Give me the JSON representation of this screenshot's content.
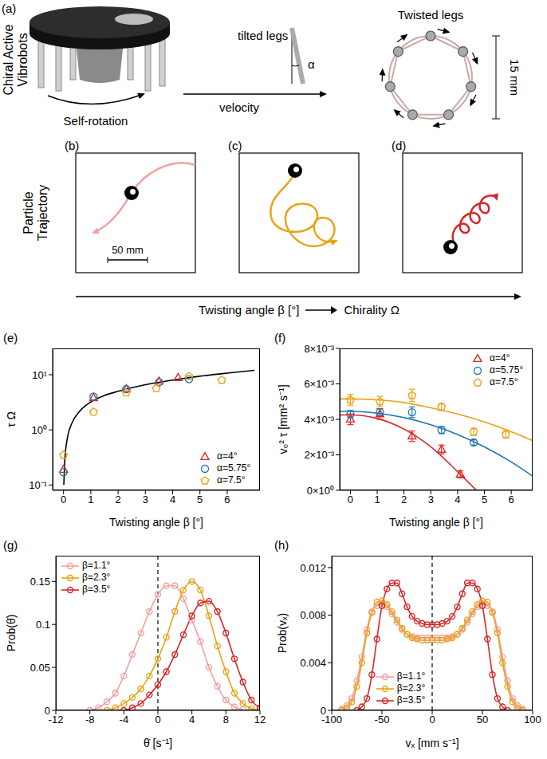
{
  "diagram": {
    "panel_a": {
      "label": "(a)",
      "title": "Chiral Active Vibrobots",
      "rotation_label": "Self-rotation",
      "leg_label": "tilted legs",
      "angle_label": "α",
      "velocity_label": "velocity",
      "top_view_label": "Twisted legs",
      "scale_label": "15 mm"
    },
    "trajectories": {
      "row_label": "Particle Trajectory",
      "scale_label": "50 mm",
      "panels": [
        {
          "label": "(b)",
          "color": "#f2a0a0"
        },
        {
          "label": "(c)",
          "color": "#e8a317"
        },
        {
          "label": "(d)",
          "color": "#d62728"
        }
      ]
    },
    "axis_arrow": {
      "from": "Twisting angle β [°]",
      "to": "Chirality Ω"
    }
  },
  "chart_data": [
    {
      "panel_label": "(e)",
      "type": "scatter",
      "x_label": "Twisting angle β [°]",
      "y_label": "τ Ω",
      "log": "y",
      "xlim": [
        -0.4,
        7.2
      ],
      "xticks": [
        0,
        1,
        2,
        3,
        4,
        5,
        6
      ],
      "ylim": [
        0.08,
        30
      ],
      "yticks": [
        {
          "value": 0.1,
          "label": "10⁻¹"
        },
        {
          "value": 1,
          "label": "10⁰"
        },
        {
          "value": 10,
          "label": "10¹"
        }
      ],
      "legend": "lower right",
      "series": [
        {
          "name": "α=4°",
          "type": "scatter",
          "marker": "triangle",
          "color": "#dc2a2a",
          "x": [
            0,
            1.1,
            2.3,
            3.5,
            4.2
          ],
          "values": [
            0.19,
            3.8,
            5.5,
            7.6,
            8.8
          ]
        },
        {
          "name": "α=5.75°",
          "type": "scatter",
          "marker": "circle",
          "color": "#1f78b4",
          "x": [
            0,
            1.1,
            2.3,
            3.5,
            4.6
          ],
          "values": [
            0.17,
            4.0,
            5.5,
            7.3,
            8.3
          ]
        },
        {
          "name": "α=7.5°",
          "type": "scatter",
          "marker": "pentagon",
          "color": "#e8a317",
          "x": [
            0,
            1.1,
            2.3,
            3.4,
            4.6,
            5.8
          ],
          "values": [
            0.35,
            2.1,
            4.7,
            5.6,
            9.3,
            8.0
          ]
        },
        {
          "type": "line",
          "color": "#000000",
          "x": [
            0.01,
            0.05,
            0.15,
            0.3,
            0.6,
            1,
            1.5,
            2,
            3,
            4,
            5,
            6,
            7
          ],
          "values": [
            0.1,
            0.3,
            0.75,
            1.3,
            2.2,
            3.2,
            4.2,
            5.0,
            6.6,
            8.0,
            9.4,
            10.7,
            12.0
          ]
        }
      ]
    },
    {
      "panel_label": "(f)",
      "type": "scatter",
      "x_label": "Twisting angle β [°]",
      "y_label": "v₀² τ [mm² s⁻¹]",
      "xlim": [
        -0.4,
        6.8
      ],
      "xticks": [
        0,
        1,
        2,
        3,
        4,
        5,
        6
      ],
      "ylim": [
        0,
        0.008
      ],
      "yticks": [
        {
          "value": 0,
          "label": "0×10⁰"
        },
        {
          "value": 0.002,
          "label": "2×10⁻³"
        },
        {
          "value": 0.004,
          "label": "4×10⁻³"
        },
        {
          "value": 0.006,
          "label": "6×10⁻³"
        },
        {
          "value": 0.008,
          "label": "8×10⁻³"
        }
      ],
      "legend": "upper right",
      "series": [
        {
          "name": "α=4°",
          "type": "scatter",
          "marker": "triangle",
          "color": "#dc2a2a",
          "x": [
            0,
            1.1,
            2.3,
            3.4,
            4.1
          ],
          "values": [
            0.004,
            0.0043,
            0.00305,
            0.0023,
            0.0009
          ],
          "errors": [
            0.0003,
            0.0003,
            0.0003,
            0.00025,
            0.0002
          ]
        },
        {
          "name": "α=5.75°",
          "type": "scatter",
          "marker": "circle",
          "color": "#1f78b4",
          "x": [
            0,
            1.1,
            2.3,
            3.4,
            4.6
          ],
          "values": [
            0.0043,
            0.0044,
            0.0044,
            0.0034,
            0.0027
          ],
          "errors": [
            0.0002,
            0.0002,
            0.0003,
            0.0002,
            0.00015
          ]
        },
        {
          "name": "α=7.5°",
          "type": "scatter",
          "marker": "pentagon",
          "color": "#e8a317",
          "x": [
            0,
            1.1,
            2.3,
            3.4,
            4.6,
            5.8
          ],
          "values": [
            0.0051,
            0.005,
            0.00535,
            0.0047,
            0.0033,
            0.00315
          ],
          "errors": [
            0.0003,
            0.0003,
            0.00035,
            0.0002,
            0.0002,
            0.0002
          ]
        },
        {
          "type": "line",
          "color": "#dc2a2a",
          "x": [
            -0.4,
            0,
            1,
            2,
            3,
            4,
            4.7
          ],
          "values": [
            0.00425,
            0.00425,
            0.00405,
            0.00345,
            0.00245,
            0.00105,
            0
          ]
        },
        {
          "type": "line",
          "color": "#1f78b4",
          "x": [
            -0.4,
            0,
            1,
            2,
            3,
            4,
            5,
            6,
            6.8
          ],
          "values": [
            0.00445,
            0.00445,
            0.00435,
            0.0041,
            0.0037,
            0.00315,
            0.00245,
            0.0016,
            0.0008
          ]
        },
        {
          "type": "line",
          "color": "#e8a317",
          "x": [
            -0.4,
            0,
            1,
            2,
            3,
            4,
            5,
            6,
            6.8
          ],
          "values": [
            0.00515,
            0.00515,
            0.0051,
            0.00495,
            0.00465,
            0.0043,
            0.00385,
            0.0033,
            0.0028
          ]
        }
      ]
    },
    {
      "panel_label": "(g)",
      "type": "line",
      "x_label": "θ̇ [s⁻¹]",
      "y_label": "Prob(θ̇)",
      "xlim": [
        -12,
        12
      ],
      "xticks": [
        -12,
        -8,
        -4,
        0,
        4,
        8,
        12
      ],
      "ylim": [
        0,
        0.18
      ],
      "yticks": [
        0,
        0.05,
        0.1,
        0.15
      ],
      "legend": "upper left",
      "reference_line_x": 0,
      "series": [
        {
          "name": "β=1.1°",
          "marker": "circle",
          "color": "#f2a0a0",
          "x": [
            -8,
            -7,
            -6,
            -5,
            -4,
            -3,
            -2,
            -1,
            0,
            1,
            2,
            3,
            4,
            5,
            6,
            7,
            8,
            9,
            10
          ],
          "values": [
            0,
            0.003,
            0.01,
            0.02,
            0.04,
            0.065,
            0.09,
            0.115,
            0.135,
            0.145,
            0.145,
            0.13,
            0.105,
            0.08,
            0.05,
            0.028,
            0.012,
            0.004,
            0.001
          ]
        },
        {
          "name": "β=2.3°",
          "marker": "circle",
          "color": "#e8a317",
          "x": [
            -6,
            -5,
            -4,
            -3,
            -2,
            -1,
            0,
            1,
            2,
            3,
            4,
            5,
            6,
            7,
            8,
            9,
            10,
            11,
            12
          ],
          "values": [
            0,
            0.003,
            0.008,
            0.015,
            0.025,
            0.04,
            0.06,
            0.085,
            0.115,
            0.14,
            0.15,
            0.14,
            0.11,
            0.075,
            0.045,
            0.02,
            0.008,
            0.002,
            0
          ]
        },
        {
          "name": "β=3.5°",
          "marker": "circle",
          "color": "#d62728",
          "x": [
            -4,
            -3,
            -2,
            -1,
            0,
            1,
            2,
            3,
            4,
            5,
            6,
            7,
            8,
            9,
            10,
            11,
            12
          ],
          "values": [
            0,
            0.003,
            0.008,
            0.018,
            0.03,
            0.045,
            0.065,
            0.088,
            0.11,
            0.125,
            0.127,
            0.115,
            0.09,
            0.06,
            0.033,
            0.012,
            0.003
          ]
        }
      ]
    },
    {
      "panel_label": "(h)",
      "type": "line",
      "x_label": "vₓ [mm s⁻¹]",
      "y_label": "Prob(vₓ)",
      "xlim": [
        -100,
        100
      ],
      "xticks": [
        -100,
        -50,
        0,
        50,
        100
      ],
      "ylim": [
        0,
        0.013
      ],
      "yticks": [
        0,
        0.004,
        0.008,
        0.012
      ],
      "legend": "lower center",
      "reference_line_x": 0,
      "series": [
        {
          "name": "β=1.1°",
          "marker": "circle",
          "color": "#f2a0a0",
          "x": [
            -90,
            -85,
            -80,
            -75,
            -70,
            -65,
            -60,
            -55,
            -50,
            -45,
            -40,
            -35,
            -30,
            -25,
            -20,
            -15,
            -10,
            -5,
            0,
            5,
            10,
            15,
            20,
            25,
            30,
            35,
            40,
            45,
            50,
            55,
            60,
            65,
            70,
            75,
            80,
            85,
            90
          ],
          "values": [
            0.0001,
            0.0004,
            0.001,
            0.0025,
            0.0045,
            0.0068,
            0.0083,
            0.0088,
            0.0089,
            0.0087,
            0.0081,
            0.0074,
            0.0068,
            0.0064,
            0.0062,
            0.0061,
            0.0061,
            0.0061,
            0.0061,
            0.0061,
            0.0061,
            0.0061,
            0.0062,
            0.0064,
            0.0068,
            0.0074,
            0.0081,
            0.0087,
            0.0089,
            0.0088,
            0.0083,
            0.0068,
            0.0045,
            0.0025,
            0.001,
            0.0004,
            0.0001
          ]
        },
        {
          "name": "β=2.3°",
          "marker": "circle",
          "color": "#e8a317",
          "x": [
            -90,
            -85,
            -80,
            -75,
            -70,
            -65,
            -60,
            -55,
            -50,
            -45,
            -40,
            -35,
            -30,
            -25,
            -20,
            -15,
            -10,
            -5,
            0,
            5,
            10,
            15,
            20,
            25,
            30,
            35,
            40,
            45,
            50,
            55,
            60,
            65,
            70,
            75,
            80,
            85,
            90
          ],
          "values": [
            0,
            0.0002,
            0.0007,
            0.002,
            0.004,
            0.0065,
            0.0082,
            0.0091,
            0.0092,
            0.0089,
            0.0083,
            0.0076,
            0.0069,
            0.0064,
            0.0061,
            0.006,
            0.0059,
            0.0059,
            0.0059,
            0.0059,
            0.0059,
            0.006,
            0.0061,
            0.0064,
            0.0069,
            0.0076,
            0.0083,
            0.0089,
            0.0092,
            0.0091,
            0.0082,
            0.0065,
            0.004,
            0.002,
            0.0007,
            0.0002,
            0
          ]
        },
        {
          "name": "β=3.5°",
          "marker": "circle",
          "color": "#d62728",
          "x": [
            -75,
            -70,
            -65,
            -60,
            -55,
            -50,
            -45,
            -40,
            -35,
            -30,
            -25,
            -20,
            -15,
            -10,
            -5,
            0,
            5,
            10,
            15,
            20,
            25,
            30,
            35,
            40,
            45,
            50,
            55,
            60,
            65,
            70,
            75
          ],
          "values": [
            0,
            0.0003,
            0.001,
            0.003,
            0.006,
            0.0088,
            0.0102,
            0.0107,
            0.0107,
            0.0098,
            0.0087,
            0.0079,
            0.0075,
            0.0073,
            0.0072,
            0.0072,
            0.0072,
            0.0073,
            0.0075,
            0.0079,
            0.0087,
            0.0098,
            0.0107,
            0.0107,
            0.0102,
            0.0088,
            0.006,
            0.003,
            0.001,
            0.0003,
            0
          ]
        }
      ]
    }
  ]
}
